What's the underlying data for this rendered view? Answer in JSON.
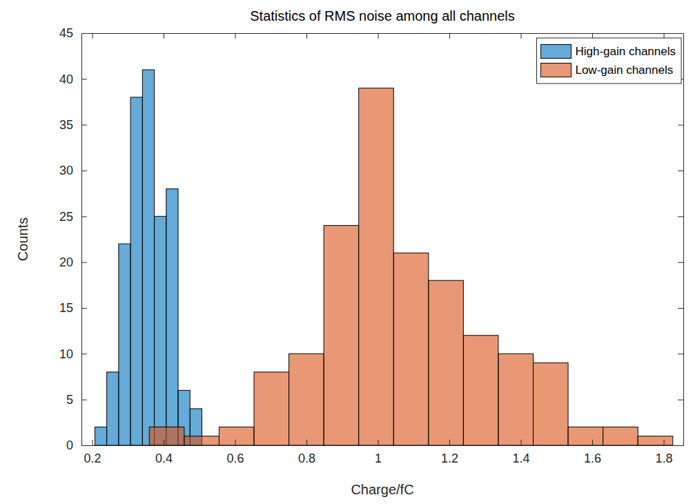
{
  "chart_data": {
    "type": "histogram",
    "title": "Statistics of RMS noise among all channels",
    "x_label": "Charge/fC",
    "y_label": "Counts",
    "xlim": [
      0.17,
      1.855
    ],
    "xticks": [
      0.2,
      0.4,
      0.6,
      0.8,
      1,
      1.2,
      1.4,
      1.6,
      1.8
    ],
    "ylim": [
      0,
      45
    ],
    "yticks": [
      0,
      5,
      10,
      15,
      20,
      25,
      30,
      35,
      40,
      45
    ],
    "legend": "northeast",
    "series": [
      {
        "name": "High-gain channels",
        "color": "#0072bd",
        "bins": [
          0.2075,
          0.2408,
          0.2741,
          0.3074,
          0.3407,
          0.374,
          0.4073,
          0.4406,
          0.4739,
          0.5072
        ],
        "values": [
          2,
          8,
          22,
          38,
          41,
          25,
          28,
          6,
          4
        ]
      },
      {
        "name": "Low-gain channels",
        "color": "#d95319",
        "bins": [
          0.36,
          0.4577,
          0.5554,
          0.6531,
          0.7508,
          0.8485,
          0.9462,
          1.0439,
          1.1416,
          1.2393,
          1.337,
          1.4347,
          1.5324,
          1.6301,
          1.7278,
          1.8255
        ],
        "values": [
          2,
          1,
          2,
          8,
          10,
          24,
          39,
          21,
          18,
          12,
          10,
          9,
          2,
          2,
          1
        ]
      }
    ]
  }
}
